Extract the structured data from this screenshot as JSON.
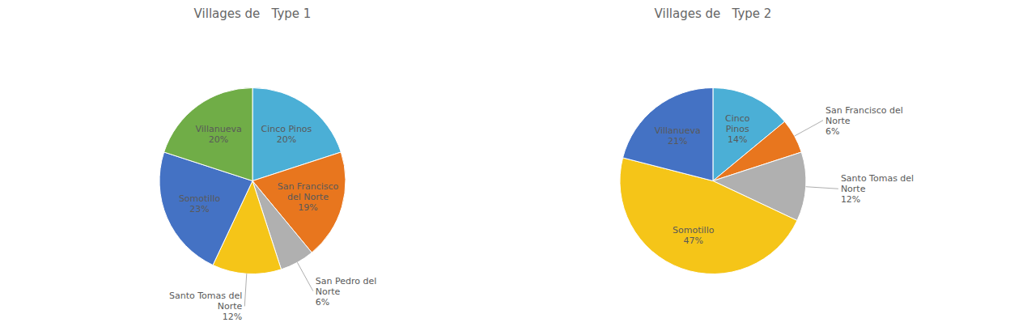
{
  "chart_data": [
    {
      "type": "pie",
      "title": "Villages de   Type 1",
      "categories": [
        "Cinco Pinos",
        "San Francisco\ndel Norte",
        "San Pedro del\nNorte",
        "Santo Tomas del\nNorte",
        "Somotillo",
        "Villanueva"
      ],
      "values": [
        20,
        19,
        6,
        12,
        23,
        20
      ],
      "value_labels": [
        "20%",
        "19%",
        "6%",
        "12%",
        "23%",
        "20%"
      ],
      "colors": [
        "#4BAFD6",
        "#E8761E",
        "#B0B0B0",
        "#F5C518",
        "#4472C4",
        "#70AD47"
      ],
      "data_labels": true
    },
    {
      "type": "pie",
      "title": "Villages de   Type 2",
      "categories": [
        "Cinco\nPinos",
        "San Francisco del\nNorte",
        "Santo Tomas del\nNorte",
        "Somotillo",
        "Villanueva"
      ],
      "values": [
        14,
        6,
        12,
        47,
        21
      ],
      "value_labels": [
        "14%",
        "6%",
        "12%",
        "47%",
        "21%"
      ],
      "colors": [
        "#4BAFD6",
        "#E8761E",
        "#B0B0B0",
        "#F5C518",
        "#4472C4"
      ],
      "data_labels": true
    }
  ]
}
